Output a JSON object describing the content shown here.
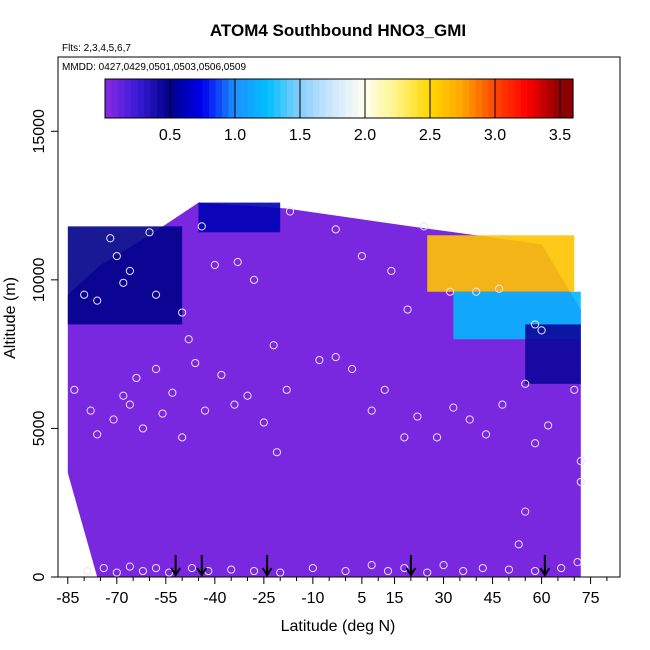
{
  "chart_data": {
    "type": "heatmap",
    "title": "ATOM4 Southbound HNO3_GMI",
    "subtitle_lines": [
      "Flts: 2,3,4,5,6,7",
      "MMDD: 0427,0429,0501,0503,0506,0509"
    ],
    "xlabel": "Latitude (deg N)",
    "ylabel": "Altitude (m)",
    "xlim": [
      -88,
      84
    ],
    "ylim": [
      0,
      17500
    ],
    "x_ticks": [
      -85,
      -70,
      -55,
      -40,
      -25,
      -10,
      5,
      15,
      30,
      45,
      60,
      75
    ],
    "y_ticks": [
      0,
      5000,
      10000,
      15000
    ],
    "colorbar": {
      "range": [
        0,
        3.6
      ],
      "tick_values": [
        0.5,
        1.0,
        1.5,
        2.0,
        2.5,
        3.0,
        3.5
      ],
      "tick_labels": [
        "0.5",
        "1.0",
        "1.5",
        "2.0",
        "2.5",
        "3.0",
        "3.5"
      ],
      "color_stops": [
        {
          "v": 0.0,
          "c": "#8a2be2"
        },
        {
          "v": 0.25,
          "c": "#3a1bd8"
        },
        {
          "v": 0.5,
          "c": "#00008b"
        },
        {
          "v": 0.75,
          "c": "#0000f0"
        },
        {
          "v": 1.0,
          "c": "#1e90ff"
        },
        {
          "v": 1.25,
          "c": "#00bfff"
        },
        {
          "v": 1.5,
          "c": "#87cefa"
        },
        {
          "v": 1.75,
          "c": "#cfe8ff"
        },
        {
          "v": 2.0,
          "c": "#fffff0"
        },
        {
          "v": 2.25,
          "c": "#fff380"
        },
        {
          "v": 2.5,
          "c": "#ffd700"
        },
        {
          "v": 2.75,
          "c": "#ffa500"
        },
        {
          "v": 3.0,
          "c": "#ff4500"
        },
        {
          "v": 3.25,
          "c": "#ff0000"
        },
        {
          "v": 3.5,
          "c": "#8b0000"
        }
      ]
    },
    "background_value": 0.05,
    "regions": [
      {
        "name": "upper-latitude-enhancement",
        "x": [
          25,
          70
        ],
        "y": [
          9600,
          11500
        ],
        "value": 2.6
      },
      {
        "name": "upper-latitude-rim",
        "x": [
          33,
          72
        ],
        "y": [
          8000,
          9600
        ],
        "value": 1.2
      },
      {
        "name": "southern-high-blue",
        "x": [
          -85,
          -50
        ],
        "y": [
          8500,
          11800
        ],
        "value": 0.5
      },
      {
        "name": "southern-top-blue",
        "x": [
          -45,
          -20
        ],
        "y": [
          11600,
          12600
        ],
        "value": 0.6
      },
      {
        "name": "northern-column-blue",
        "x": [
          55,
          72
        ],
        "y": [
          6500,
          8500
        ],
        "value": 0.45
      }
    ],
    "envelope_top": [
      {
        "lat": -85,
        "alt": 9500
      },
      {
        "lat": -75,
        "alt": 10500
      },
      {
        "lat": -60,
        "alt": 11500
      },
      {
        "lat": -45,
        "alt": 12600
      },
      {
        "lat": -18,
        "alt": 12400
      },
      {
        "lat": 20,
        "alt": 11800
      },
      {
        "lat": 60,
        "alt": 11200
      },
      {
        "lat": 72,
        "alt": 9000
      }
    ],
    "observation_points": [
      {
        "lat": -80,
        "alt": 9500
      },
      {
        "lat": -76,
        "alt": 9300
      },
      {
        "lat": -72,
        "alt": 11400
      },
      {
        "lat": -70,
        "alt": 10800
      },
      {
        "lat": -68,
        "alt": 9900
      },
      {
        "lat": -66,
        "alt": 10300
      },
      {
        "lat": -60,
        "alt": 11600
      },
      {
        "lat": -58,
        "alt": 9500
      },
      {
        "lat": -50,
        "alt": 8900
      },
      {
        "lat": -44,
        "alt": 11800
      },
      {
        "lat": -40,
        "alt": 10500
      },
      {
        "lat": -33,
        "alt": 10600
      },
      {
        "lat": -28,
        "alt": 10000
      },
      {
        "lat": -22,
        "alt": 7800
      },
      {
        "lat": -17,
        "alt": 12300
      },
      {
        "lat": -3,
        "alt": 11700
      },
      {
        "lat": 5,
        "alt": 10800
      },
      {
        "lat": 14,
        "alt": 10300
      },
      {
        "lat": 19,
        "alt": 9000
      },
      {
        "lat": 24,
        "alt": 11800
      },
      {
        "lat": 32,
        "alt": 9600
      },
      {
        "lat": 40,
        "alt": 9600
      },
      {
        "lat": 47,
        "alt": 9700
      },
      {
        "lat": 58,
        "alt": 8500
      },
      {
        "lat": 60,
        "alt": 8300
      },
      {
        "lat": -83,
        "alt": 6300
      },
      {
        "lat": -78,
        "alt": 5600
      },
      {
        "lat": -76,
        "alt": 4800
      },
      {
        "lat": -71,
        "alt": 5300
      },
      {
        "lat": -68,
        "alt": 6100
      },
      {
        "lat": -66,
        "alt": 5800
      },
      {
        "lat": -64,
        "alt": 6700
      },
      {
        "lat": -62,
        "alt": 5000
      },
      {
        "lat": -58,
        "alt": 7000
      },
      {
        "lat": -56,
        "alt": 5500
      },
      {
        "lat": -53,
        "alt": 6200
      },
      {
        "lat": -50,
        "alt": 4700
      },
      {
        "lat": -48,
        "alt": 8000
      },
      {
        "lat": -46,
        "alt": 7200
      },
      {
        "lat": -43,
        "alt": 5600
      },
      {
        "lat": -38,
        "alt": 6800
      },
      {
        "lat": -34,
        "alt": 5800
      },
      {
        "lat": -30,
        "alt": 6100
      },
      {
        "lat": -25,
        "alt": 5200
      },
      {
        "lat": -21,
        "alt": 4200
      },
      {
        "lat": -18,
        "alt": 6300
      },
      {
        "lat": -8,
        "alt": 7300
      },
      {
        "lat": -3,
        "alt": 7400
      },
      {
        "lat": 2,
        "alt": 7000
      },
      {
        "lat": 8,
        "alt": 5600
      },
      {
        "lat": 12,
        "alt": 6300
      },
      {
        "lat": 18,
        "alt": 4700
      },
      {
        "lat": 22,
        "alt": 5400
      },
      {
        "lat": 28,
        "alt": 4700
      },
      {
        "lat": 33,
        "alt": 5700
      },
      {
        "lat": 38,
        "alt": 5300
      },
      {
        "lat": 43,
        "alt": 4800
      },
      {
        "lat": 48,
        "alt": 5800
      },
      {
        "lat": 55,
        "alt": 6500
      },
      {
        "lat": 58,
        "alt": 4500
      },
      {
        "lat": 62,
        "alt": 5100
      },
      {
        "lat": 70,
        "alt": 6300
      },
      {
        "lat": 72,
        "alt": 3900
      },
      {
        "lat": 72,
        "alt": 3200
      },
      {
        "lat": 55,
        "alt": 2200
      },
      {
        "lat": 53,
        "alt": 1100
      },
      {
        "lat": -79,
        "alt": 200
      },
      {
        "lat": -74,
        "alt": 300
      },
      {
        "lat": -70,
        "alt": 150
      },
      {
        "lat": -66,
        "alt": 350
      },
      {
        "lat": -62,
        "alt": 200
      },
      {
        "lat": -58,
        "alt": 300
      },
      {
        "lat": -54,
        "alt": 150
      },
      {
        "lat": -47,
        "alt": 300
      },
      {
        "lat": -42,
        "alt": 200
      },
      {
        "lat": -35,
        "alt": 250
      },
      {
        "lat": -28,
        "alt": 200
      },
      {
        "lat": -20,
        "alt": 150
      },
      {
        "lat": -10,
        "alt": 300
      },
      {
        "lat": 0,
        "alt": 200
      },
      {
        "lat": 8,
        "alt": 400
      },
      {
        "lat": 13,
        "alt": 200
      },
      {
        "lat": 18,
        "alt": 300
      },
      {
        "lat": 25,
        "alt": 150
      },
      {
        "lat": 30,
        "alt": 400
      },
      {
        "lat": 36,
        "alt": 200
      },
      {
        "lat": 42,
        "alt": 300
      },
      {
        "lat": 50,
        "alt": 250
      },
      {
        "lat": 58,
        "alt": 200
      },
      {
        "lat": 66,
        "alt": 300
      },
      {
        "lat": 71,
        "alt": 500
      }
    ],
    "arrows_lat": [
      -52,
      -44,
      -24,
      20,
      61
    ]
  }
}
